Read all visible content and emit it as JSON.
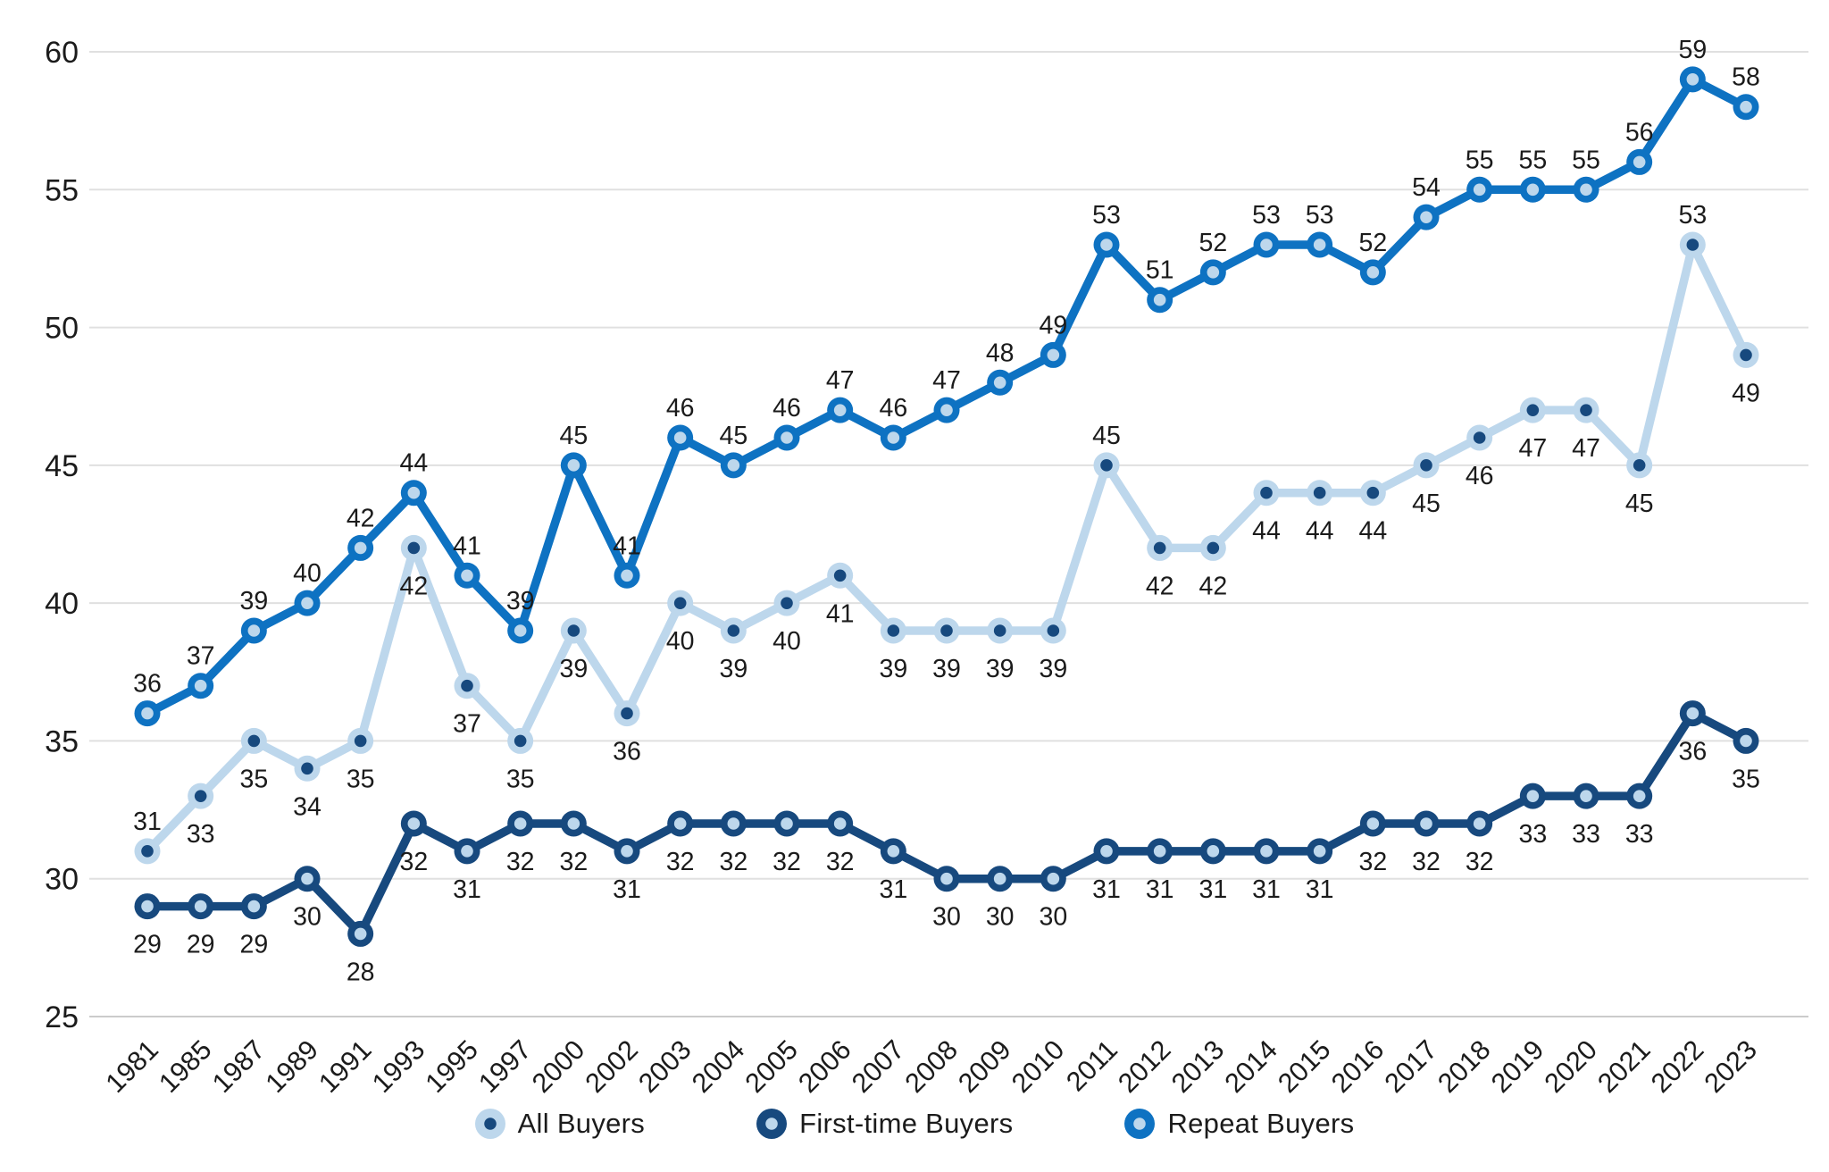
{
  "chart_data": {
    "type": "line",
    "title": "",
    "xlabel": "",
    "ylabel": "",
    "categories": [
      "1981",
      "1985",
      "1987",
      "1989",
      "1991",
      "1993",
      "1995",
      "1997",
      "2000",
      "2002",
      "2003",
      "2004",
      "2005",
      "2006",
      "2007",
      "2008",
      "2009",
      "2010",
      "2011",
      "2012",
      "2013",
      "2014",
      "2015",
      "2016",
      "2017",
      "2018",
      "2019",
      "2020",
      "2021",
      "2022",
      "2023"
    ],
    "series": [
      {
        "name": "All Buyers",
        "line_color": "#BDD7EC",
        "dot_color": "#17497E",
        "values": [
          31,
          33,
          35,
          34,
          35,
          42,
          37,
          35,
          39,
          36,
          40,
          39,
          40,
          41,
          39,
          39,
          39,
          39,
          45,
          42,
          42,
          44,
          44,
          44,
          45,
          46,
          47,
          47,
          45,
          53,
          49
        ],
        "label_side": [
          "above",
          "below",
          "below",
          "below",
          "below",
          "below",
          "below",
          "below",
          "below",
          "below",
          "below",
          "below",
          "below",
          "below",
          "below",
          "below",
          "below",
          "below",
          "above",
          "below",
          "below",
          "below",
          "below",
          "below",
          "below",
          "below",
          "below",
          "below",
          "below",
          "above",
          "below"
        ]
      },
      {
        "name": "First-time Buyers",
        "line_color": "#17497E",
        "dot_color": "#BDD7EC",
        "values": [
          29,
          29,
          29,
          30,
          28,
          32,
          31,
          32,
          32,
          31,
          32,
          32,
          32,
          32,
          31,
          30,
          30,
          30,
          31,
          31,
          31,
          31,
          31,
          32,
          32,
          32,
          33,
          33,
          33,
          36,
          35
        ],
        "label_side": "below"
      },
      {
        "name": "Repeat Buyers",
        "line_color": "#0E72C2",
        "dot_color": "#BDD7EC",
        "values": [
          36,
          37,
          39,
          40,
          42,
          44,
          41,
          39,
          45,
          41,
          46,
          45,
          46,
          47,
          46,
          47,
          48,
          49,
          53,
          51,
          52,
          53,
          53,
          52,
          54,
          55,
          55,
          55,
          56,
          59,
          58
        ],
        "label_side": "above"
      }
    ],
    "ylim": [
      25,
      60
    ],
    "yticks": [
      25,
      30,
      35,
      40,
      45,
      50,
      55,
      60
    ],
    "grid": "horizontal",
    "legend_position": "bottom",
    "text_color": "#1b1b1b",
    "grid_color": "#E0E0E0",
    "axis_line_color": "#CBCBCB"
  },
  "legend": {
    "items": [
      {
        "label": "All Buyers"
      },
      {
        "label": "First-time Buyers"
      },
      {
        "label": "Repeat Buyers"
      }
    ]
  }
}
